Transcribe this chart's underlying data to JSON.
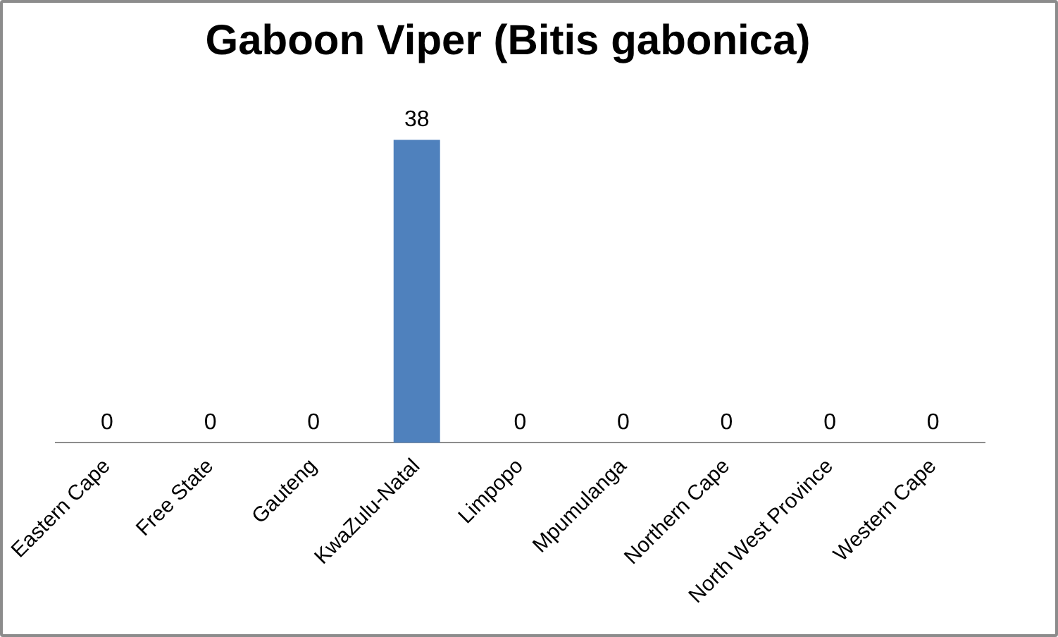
{
  "chart_data": {
    "type": "bar",
    "title": "Gaboon Viper (Bitis gabonica)",
    "categories": [
      "Eastern Cape",
      "Free State",
      "Gauteng",
      "KwaZulu-Natal",
      "Limpopo",
      "Mpumulanga",
      "Northern Cape",
      "North West Province",
      "Western Cape"
    ],
    "values": [
      0,
      0,
      0,
      38,
      0,
      0,
      0,
      0,
      0
    ],
    "color": "#4f81bd",
    "data_labels": true,
    "grid": false,
    "legend": false
  }
}
